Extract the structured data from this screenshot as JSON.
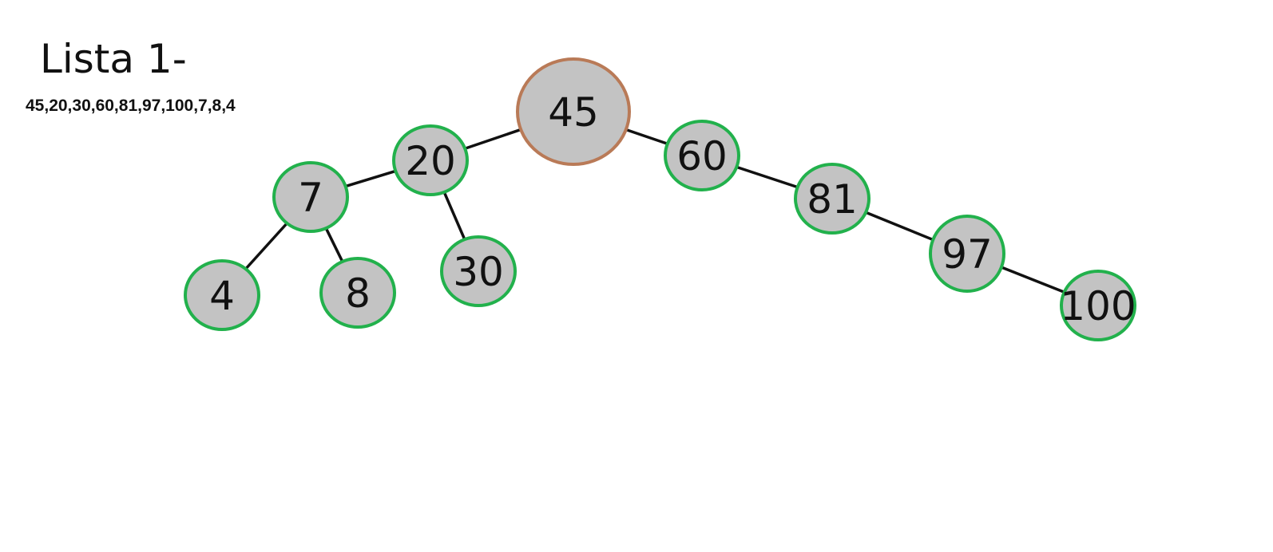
{
  "title": "Lista 1-",
  "sequence": "45,20,30,60,81,97,100,7,8,4",
  "colors": {
    "root_border": "#b97a57",
    "node_border": "#22b14c",
    "node_fill": "#c3c3c3",
    "edge": "#111111"
  },
  "tree": {
    "root": "45",
    "nodes": [
      {
        "id": "45",
        "label": "45",
        "kind": "root"
      },
      {
        "id": "20",
        "label": "20",
        "kind": "node"
      },
      {
        "id": "60",
        "label": "60",
        "kind": "node"
      },
      {
        "id": "7",
        "label": "7",
        "kind": "node"
      },
      {
        "id": "30",
        "label": "30",
        "kind": "node"
      },
      {
        "id": "81",
        "label": "81",
        "kind": "node"
      },
      {
        "id": "4",
        "label": "4",
        "kind": "node"
      },
      {
        "id": "8",
        "label": "8",
        "kind": "node"
      },
      {
        "id": "97",
        "label": "97",
        "kind": "node"
      },
      {
        "id": "100",
        "label": "100",
        "kind": "node"
      }
    ],
    "edges": [
      {
        "from": "45",
        "to": "20"
      },
      {
        "from": "45",
        "to": "60"
      },
      {
        "from": "20",
        "to": "7"
      },
      {
        "from": "20",
        "to": "30"
      },
      {
        "from": "7",
        "to": "4"
      },
      {
        "from": "7",
        "to": "8"
      },
      {
        "from": "60",
        "to": "81"
      },
      {
        "from": "81",
        "to": "97"
      },
      {
        "from": "97",
        "to": "100"
      }
    ]
  }
}
